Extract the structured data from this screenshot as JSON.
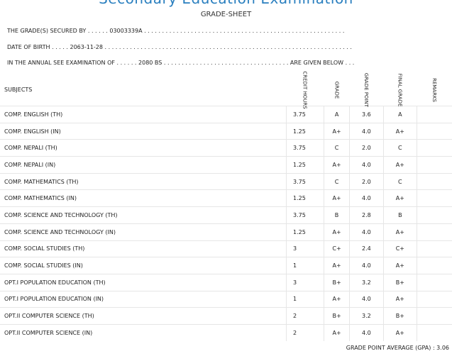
{
  "header": {
    "exam_title": "Secondary Education Examination",
    "sheet_title": "GRADE-SHEET"
  },
  "info": {
    "secured_by": "THE GRADE(S) SECURED BY . . . . . . 03003339A . . . . . . . . . . . . . . . . . . . . . . . . . . . . . . . . . . . . . . . . . . . . . . . . . . . . . . . .",
    "dob": "DATE OF BIRTH . . . . . 2063-11-28 . . . . . . . . . . . . . . . . . . . . . . . . . . . . . . . . . . . . . . . . . . . . . . . . . . . . . . . . . . . . . . . . . . . . .",
    "exam_line": "IN THE ANNUAL SEE EXAMINATION OF . . . . . . 2080 BS . . . . . . . . . . . . . . . . . . . . . . . . . . . . . . . . . . . ARE GIVEN BELOW . . ."
  },
  "table": {
    "headers": {
      "subjects": "SUBJECTS",
      "credit": "CREDIT HOURS",
      "grade": "GRADE",
      "grade_point": "GRADE POINT",
      "final_grade": "FINAL GRADE",
      "remarks": "REMARKS"
    },
    "rows": [
      {
        "subject": "COMP. ENGLISH (TH)",
        "credit": "3.75",
        "grade": "A",
        "gp": "3.6",
        "final": "A"
      },
      {
        "subject": "COMP. ENGLISH (IN)",
        "credit": "1.25",
        "grade": "A+",
        "gp": "4.0",
        "final": "A+"
      },
      {
        "subject": "COMP. NEPALI (TH)",
        "credit": "3.75",
        "grade": "C",
        "gp": "2.0",
        "final": "C"
      },
      {
        "subject": "COMP. NEPALI (IN)",
        "credit": "1.25",
        "grade": "A+",
        "gp": "4.0",
        "final": "A+"
      },
      {
        "subject": "COMP. MATHEMATICS (TH)",
        "credit": "3.75",
        "grade": "C",
        "gp": "2.0",
        "final": "C"
      },
      {
        "subject": "COMP. MATHEMATICS (IN)",
        "credit": "1.25",
        "grade": "A+",
        "gp": "4.0",
        "final": "A+"
      },
      {
        "subject": "COMP. SCIENCE AND TECHNOLOGY (TH)",
        "credit": "3.75",
        "grade": "B",
        "gp": "2.8",
        "final": "B"
      },
      {
        "subject": "COMP. SCIENCE AND TECHNOLOGY (IN)",
        "credit": "1.25",
        "grade": "A+",
        "gp": "4.0",
        "final": "A+"
      },
      {
        "subject": "COMP. SOCIAL STUDIES (TH)",
        "credit": "3",
        "grade": "C+",
        "gp": "2.4",
        "final": "C+"
      },
      {
        "subject": "COMP. SOCIAL STUDIES (IN)",
        "credit": "1",
        "grade": "A+",
        "gp": "4.0",
        "final": "A+"
      },
      {
        "subject": "OPT.I POPULATION EDUCATION (TH)",
        "credit": "3",
        "grade": "B+",
        "gp": "3.2",
        "final": "B+"
      },
      {
        "subject": "OPT.I POPULATION EDUCATION (IN)",
        "credit": "1",
        "grade": "A+",
        "gp": "4.0",
        "final": "A+"
      },
      {
        "subject": "OPT.II COMPUTER SCIENCE (TH)",
        "credit": "2",
        "grade": "B+",
        "gp": "3.2",
        "final": "B+"
      },
      {
        "subject": "OPT.II COMPUTER SCIENCE (IN)",
        "credit": "2",
        "grade": "A+",
        "gp": "4.0",
        "final": "A+"
      }
    ]
  },
  "footer": {
    "gpa_text": "GRADE POINT AVERAGE (GPA) : 3.06"
  }
}
